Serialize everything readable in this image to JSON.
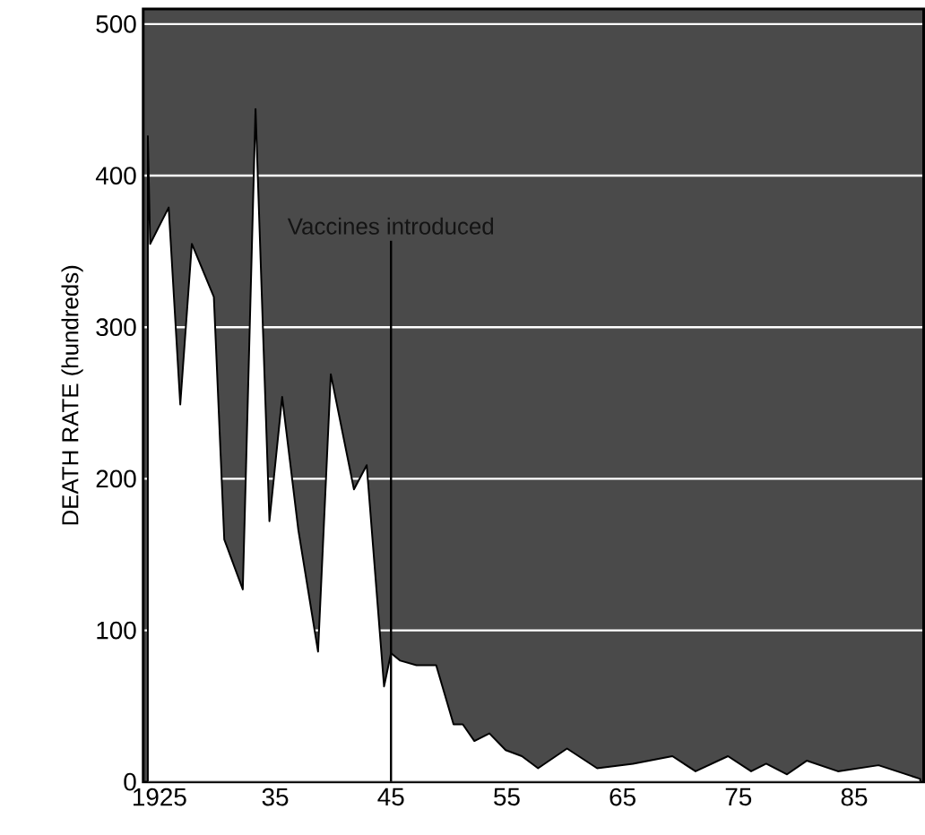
{
  "chart_data": {
    "type": "area",
    "ylabel": "DEATH RATE (hundreds)",
    "x": [
      1924.0,
      1924.2,
      1925.8,
      1926.8,
      1927.8,
      1929.7,
      1930.6,
      1932.2,
      1933.3,
      1934.5,
      1935.6,
      1937.0,
      1938.7,
      1939.8,
      1941.8,
      1942.9,
      1944.4,
      1945.0,
      1945.8,
      1947.2,
      1948.9,
      1950.4,
      1951.2,
      1952.2,
      1953.5,
      1954.9,
      1956.3,
      1957.7,
      1960.2,
      1962.8,
      1965.9,
      1969.3,
      1971.3,
      1974.1,
      1976.1,
      1977.4,
      1979.2,
      1980.9,
      1983.6,
      1987.1,
      1990.7
    ],
    "series": [
      {
        "color": "#ffffff",
        "values": [
          426,
          355,
          379,
          249,
          355,
          320,
          160,
          127,
          444,
          172,
          254,
          166,
          86,
          269,
          193,
          209,
          63,
          85,
          80,
          77,
          77,
          38,
          38,
          27,
          32,
          21,
          17,
          9,
          22,
          9,
          12,
          17,
          7,
          17,
          7,
          12,
          5,
          14,
          7,
          11,
          2
        ]
      }
    ],
    "xlim": [
      1923.6,
      1991
    ],
    "ylim": [
      0,
      510
    ],
    "xticks": [
      1925,
      {
        "value": 1935,
        "label": "35"
      },
      {
        "value": 1945,
        "label": "45"
      },
      {
        "value": 1955,
        "label": "55"
      },
      {
        "value": 1965,
        "label": "65"
      },
      {
        "value": 1975,
        "label": "75"
      },
      {
        "value": 1985,
        "label": "85"
      }
    ],
    "yticks": [
      0,
      100,
      200,
      300,
      400,
      500
    ],
    "grid": "y",
    "ref_lines": [
      {
        "axis": "x",
        "value": 1945,
        "label": "Vaccines introduced"
      }
    ]
  }
}
